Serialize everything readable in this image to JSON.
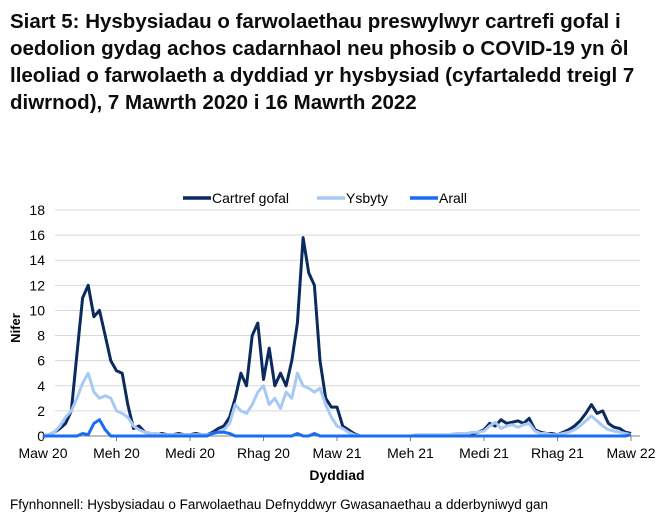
{
  "title": "Siart 5: Hysbysiadau o farwolaethau preswylwyr cartrefi gofal i oedolion gydag achos cadarnhaol neu phosib o COVID-19 yn ôl lleoliad o farwolaeth a dyddiad yr hysbysiad (cyfartaledd treigl 7 diwrnod), 7 Mawrth 2020 i 16 Mawrth 2022",
  "source": "Ffynhonnell: Hysbysiadau o Farwolaethau Defnyddwyr Gwasanaethau a dderbyniwyd gan",
  "chart_data": {
    "type": "line",
    "xlabel": "Dyddiad",
    "ylabel": "Nifer",
    "ylim": [
      0,
      18
    ],
    "yticks": [
      0,
      2,
      4,
      6,
      8,
      10,
      12,
      14,
      16,
      18
    ],
    "xlim_weeks": [
      0,
      105
    ],
    "x_unit": "weeks since 7 Mar 2020",
    "xtick_labels": [
      "Maw 20",
      "Meh 20",
      "Medi 20",
      "Rhag 20",
      "Maw 21",
      "Meh 21",
      "Medi 21",
      "Rhag 21",
      "Maw 22"
    ],
    "grid": true,
    "legend_position": "top",
    "series": [
      {
        "name": "Cartref gofal",
        "color": "#0b2a5e",
        "values": [
          0,
          0.1,
          0.3,
          0.6,
          1,
          2,
          6.5,
          11,
          12,
          9.5,
          10,
          8,
          6,
          5.2,
          5,
          2.5,
          0.6,
          0.8,
          0.3,
          0.2,
          0.1,
          0.2,
          0.1,
          0.1,
          0.2,
          0.1,
          0.1,
          0.2,
          0.1,
          0.1,
          0.3,
          0.6,
          0.8,
          1.5,
          3,
          5,
          4,
          8,
          9,
          4.5,
          7,
          4,
          5,
          4,
          6,
          9,
          15.8,
          13,
          12,
          6,
          3,
          2.3,
          2.3,
          0.8,
          0.5,
          0.2,
          0,
          0,
          0,
          0,
          0,
          0,
          0,
          0,
          0,
          0,
          0,
          0,
          0,
          0,
          0,
          0,
          0,
          0,
          0.1,
          0.2,
          0.2,
          0.3,
          0.5,
          1,
          0.8,
          1.3,
          1,
          1.1,
          1.2,
          1,
          1.4,
          0.5,
          0.3,
          0.2,
          0.2,
          0.1,
          0.3,
          0.5,
          0.8,
          1.2,
          1.8,
          2.5,
          1.8,
          2,
          1,
          0.7,
          0.6,
          0.3,
          0.2
        ]
      },
      {
        "name": "Ysbyty",
        "color": "#a9c9f5",
        "values": [
          0,
          0.1,
          0.3,
          0.8,
          1.5,
          2,
          3,
          4.2,
          5,
          3.5,
          3,
          3.2,
          3,
          2,
          1.8,
          1.5,
          0.8,
          0.5,
          0.3,
          0.2,
          0.2,
          0.1,
          0.1,
          0.1,
          0.1,
          0.1,
          0.1,
          0.1,
          0.1,
          0.1,
          0.2,
          0.3,
          0.5,
          1,
          2.5,
          2,
          1.8,
          2.5,
          3.5,
          4,
          2.5,
          3,
          2.2,
          3.5,
          3,
          5,
          4,
          3.8,
          3.5,
          3.8,
          2.5,
          1.5,
          0.8,
          0.6,
          0.3,
          0.1,
          0,
          0,
          0,
          0,
          0,
          0,
          0,
          0,
          0,
          0,
          0.1,
          0.1,
          0.1,
          0.1,
          0.1,
          0.1,
          0.1,
          0.2,
          0.2,
          0.2,
          0.3,
          0.3,
          0.4,
          0.8,
          1.1,
          0.6,
          0.8,
          0.9,
          0.7,
          0.9,
          1,
          0.4,
          0.2,
          0.2,
          0.1,
          0.1,
          0.2,
          0.3,
          0.5,
          0.8,
          1.2,
          1.6,
          1.2,
          0.8,
          0.5,
          0.4,
          0.3,
          0.2,
          0.1
        ]
      },
      {
        "name": "Arall",
        "color": "#1a6cf0",
        "values": [
          0,
          0,
          0,
          0,
          0,
          0,
          0,
          0.2,
          0.1,
          1,
          1.3,
          0.5,
          0,
          0,
          0,
          0,
          0,
          0,
          0,
          0,
          0,
          0,
          0,
          0,
          0,
          0,
          0,
          0,
          0,
          0,
          0.2,
          0.3,
          0.3,
          0.2,
          0,
          0,
          0,
          0,
          0,
          0,
          0,
          0,
          0,
          0,
          0,
          0.2,
          0,
          0,
          0.2,
          0,
          0,
          0,
          0,
          0,
          0,
          0,
          0,
          0,
          0,
          0,
          0,
          0,
          0,
          0,
          0,
          0,
          0,
          0,
          0,
          0,
          0,
          0,
          0,
          0,
          0,
          0,
          0,
          0,
          0,
          0,
          0,
          0,
          0,
          0,
          0,
          0,
          0,
          0,
          0,
          0,
          0,
          0,
          0,
          0,
          0,
          0,
          0,
          0,
          0,
          0,
          0,
          0,
          0,
          0,
          0.1
        ]
      }
    ]
  }
}
